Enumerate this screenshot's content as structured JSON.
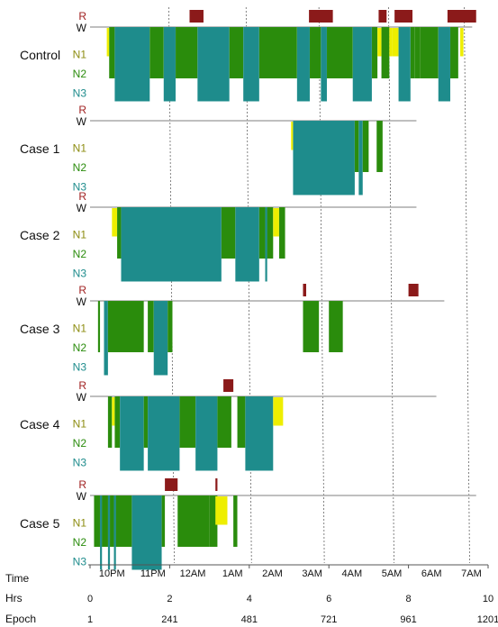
{
  "chart_data": {
    "type": "hypnogram",
    "stages": [
      "R",
      "W",
      "N1",
      "N2",
      "N3"
    ],
    "stage_colors": {
      "R": "#8b1a1a",
      "W": "#222222",
      "N1": "#eeee00",
      "N2": "#2a8c0c",
      "N3": "#1e8c8c"
    },
    "label_colors": {
      "R": "#a02020",
      "W": "#111111",
      "N1": "#8c8c10",
      "N2": "#2a8c0c",
      "N3": "#1e8c8c"
    },
    "x_unit": "hours",
    "xlim": [
      0,
      10
    ],
    "gridlines_hours": [
      1.98,
      3.92,
      5.75,
      7.5,
      9.4
    ],
    "axis": {
      "time_label": "Time",
      "hrs_label": "Hrs",
      "epoch_label": "Epoch",
      "time_ticks": [
        {
          "label": "10PM",
          "hour": 0.55
        },
        {
          "label": "11PM",
          "hour": 1.58
        },
        {
          "label": "12AM",
          "hour": 2.58
        },
        {
          "label": "1AM",
          "hour": 3.58
        },
        {
          "label": "2AM",
          "hour": 4.58
        },
        {
          "label": "3AM",
          "hour": 5.58
        },
        {
          "label": "4AM",
          "hour": 6.58
        },
        {
          "label": "5AM",
          "hour": 7.58
        },
        {
          "label": "6AM",
          "hour": 8.58
        },
        {
          "label": "7AM",
          "hour": 9.58
        }
      ],
      "hrs_ticks": [
        {
          "label": "0",
          "hour": 0
        },
        {
          "label": "2",
          "hour": 2
        },
        {
          "label": "4",
          "hour": 4
        },
        {
          "label": "6",
          "hour": 6
        },
        {
          "label": "8",
          "hour": 8
        },
        {
          "label": "10",
          "hour": 10
        }
      ],
      "epoch_ticks": [
        {
          "label": "1",
          "hour": 0
        },
        {
          "label": "241",
          "hour": 2
        },
        {
          "label": "481",
          "hour": 4
        },
        {
          "label": "721",
          "hour": 6
        },
        {
          "label": "961",
          "hour": 8
        },
        {
          "label": "1201",
          "hour": 10
        }
      ]
    },
    "panels": [
      {
        "name": "Control",
        "start": 0.45,
        "end": 9.6,
        "segments": [
          [
            "N1",
            0.42,
            0.48
          ],
          [
            "N2",
            0.48,
            0.62
          ],
          [
            "N3",
            0.62,
            1.5
          ],
          [
            "N2",
            1.5,
            1.85
          ],
          [
            "N3",
            1.85,
            2.15
          ],
          [
            "N2",
            2.15,
            2.7
          ],
          [
            "N3",
            2.7,
            3.5
          ],
          [
            "N2",
            3.5,
            3.85
          ],
          [
            "N3",
            3.85,
            4.25
          ],
          [
            "N2",
            4.25,
            5.2
          ],
          [
            "N3",
            5.2,
            5.52
          ],
          [
            "N2",
            5.52,
            5.8
          ],
          [
            "N3",
            5.8,
            5.95
          ],
          [
            "N2",
            5.95,
            6.6
          ],
          [
            "N3",
            6.6,
            7.08
          ],
          [
            "N2",
            7.08,
            7.22
          ],
          [
            "N1",
            7.22,
            7.32
          ],
          [
            "N2",
            7.32,
            7.52
          ],
          [
            "N1",
            7.52,
            7.6
          ],
          [
            "N1",
            7.6,
            7.75
          ],
          [
            "N3",
            7.75,
            8.05
          ],
          [
            "N2",
            8.05,
            8.15
          ],
          [
            "N2",
            8.15,
            8.3
          ],
          [
            "N2",
            8.3,
            8.75
          ],
          [
            "N3",
            8.75,
            9.05
          ],
          [
            "N2",
            9.05,
            9.25
          ],
          [
            "N1",
            9.3,
            9.38
          ],
          [
            "R",
            2.5,
            2.85
          ],
          [
            "R",
            5.5,
            6.1
          ],
          [
            "R",
            7.25,
            7.45
          ],
          [
            "R",
            7.65,
            8.1
          ],
          [
            "R",
            8.98,
            9.7
          ]
        ]
      },
      {
        "name": "Case 1",
        "start": 0.45,
        "end": 8.2,
        "segments": [
          [
            "N1",
            5.05,
            5.1
          ],
          [
            "N3",
            5.1,
            6.65
          ],
          [
            "N2",
            6.65,
            6.75
          ],
          [
            "N3",
            6.75,
            6.85
          ],
          [
            "N2",
            6.85,
            7.0
          ],
          [
            "N2",
            7.2,
            7.35
          ]
        ]
      },
      {
        "name": "Case 2",
        "start": 0.45,
        "end": 8.2,
        "segments": [
          [
            "N1",
            0.55,
            0.68
          ],
          [
            "N2",
            0.68,
            0.78
          ],
          [
            "N3",
            0.78,
            3.3
          ],
          [
            "N2",
            3.3,
            3.65
          ],
          [
            "N3",
            3.65,
            4.25
          ],
          [
            "N2",
            4.25,
            4.6
          ],
          [
            "N1",
            4.6,
            4.75
          ],
          [
            "N2",
            4.75,
            4.9
          ],
          [
            "N3",
            4.4,
            4.45
          ]
        ]
      },
      {
        "name": "Case 3",
        "start": 0.45,
        "end": 8.9,
        "segments": [
          [
            "N2",
            0.2,
            0.25
          ],
          [
            "N3",
            0.35,
            0.45
          ],
          [
            "N2",
            0.45,
            1.35
          ],
          [
            "N2",
            1.45,
            1.6
          ],
          [
            "N3",
            1.6,
            1.95
          ],
          [
            "N2",
            1.95,
            2.07
          ],
          [
            "N2",
            5.35,
            5.75
          ],
          [
            "N2",
            6.0,
            6.35
          ],
          [
            "R",
            5.35,
            5.43
          ],
          [
            "R",
            8.0,
            8.25
          ]
        ]
      },
      {
        "name": "Case 4",
        "start": 0.45,
        "end": 8.7,
        "segments": [
          [
            "N2",
            0.45,
            0.55
          ],
          [
            "N1",
            0.55,
            0.62
          ],
          [
            "N2",
            0.62,
            0.75
          ],
          [
            "N3",
            0.75,
            1.35
          ],
          [
            "N2",
            1.35,
            1.45
          ],
          [
            "N3",
            1.45,
            2.25
          ],
          [
            "N2",
            2.25,
            2.65
          ],
          [
            "N3",
            2.65,
            3.2
          ],
          [
            "N2",
            3.2,
            3.55
          ],
          [
            "N2",
            3.7,
            3.9
          ],
          [
            "N3",
            3.9,
            4.6
          ],
          [
            "N1",
            4.6,
            4.85
          ],
          [
            "R",
            3.35,
            3.6
          ]
        ]
      },
      {
        "name": "Case 5",
        "start": 0.1,
        "end": 9.7,
        "segments": [
          [
            "N2",
            0.1,
            1.05
          ],
          [
            "N3",
            0.25,
            0.3
          ],
          [
            "N3",
            0.45,
            0.5
          ],
          [
            "N3",
            0.6,
            0.65
          ],
          [
            "N3",
            1.05,
            1.8
          ],
          [
            "N2",
            1.8,
            1.88
          ],
          [
            "N2",
            2.2,
            3.0
          ],
          [
            "N2",
            3.0,
            3.2
          ],
          [
            "N1",
            3.15,
            3.45
          ],
          [
            "N2",
            3.6,
            3.7
          ],
          [
            "R",
            1.88,
            2.2
          ],
          [
            "R",
            3.15,
            3.2
          ]
        ]
      }
    ]
  }
}
